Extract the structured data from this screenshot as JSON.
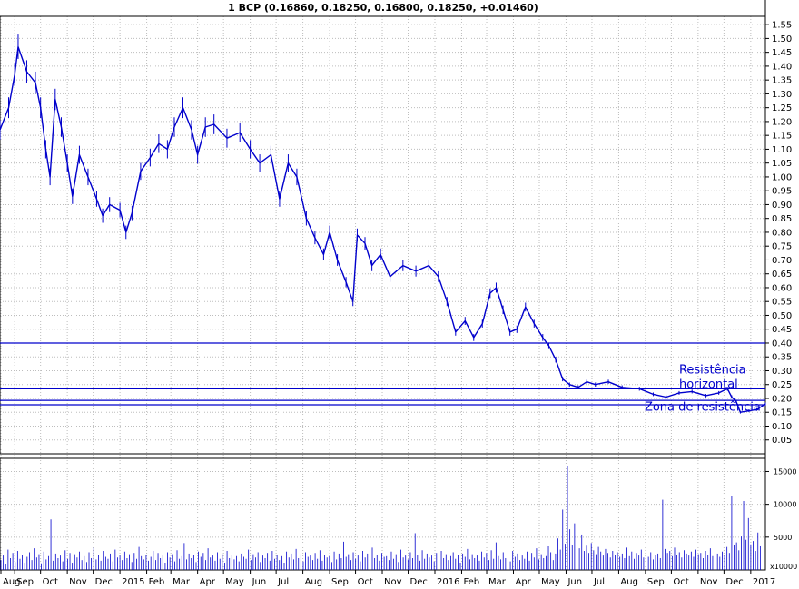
{
  "chart_data": {
    "type": "line",
    "title": "1 BCP (0.16860, 0.18250, 0.16800, 0.18250, +0.01460)",
    "colors": {
      "price": "#0000cc",
      "volume": "#0000cc",
      "resistance": "#0000cc",
      "grid": "#bdbdbd"
    },
    "grid": true,
    "price_axis": {
      "ylim": [
        0.0,
        1.58
      ],
      "ticks": [
        "1.55",
        "1.50",
        "1.45",
        "1.40",
        "1.35",
        "1.30",
        "1.25",
        "1.20",
        "1.15",
        "1.10",
        "1.05",
        "1.00",
        "0.95",
        "0.90",
        "0.85",
        "0.80",
        "0.75",
        "0.70",
        "0.65",
        "0.60",
        "0.55",
        "0.50",
        "0.45",
        "0.40",
        "0.35",
        "0.30",
        "0.25",
        "0.20",
        "0.15",
        "0.10",
        "0.05"
      ]
    },
    "volume_axis": {
      "ylim": [
        0,
        17000
      ],
      "ticks": [
        "15000",
        "10000",
        "5000"
      ],
      "unit_label": "x10000"
    },
    "x_axis": {
      "labels": [
        "Aug",
        "Sep",
        "Oct",
        "Nov",
        "Dec",
        "2015",
        "Feb",
        "Mar",
        "Apr",
        "May",
        "Jun",
        "Jul",
        "Aug",
        "Sep",
        "Oct",
        "Nov",
        "Dec",
        "2016",
        "Feb",
        "Mar",
        "Apr",
        "May",
        "Jun",
        "Jul",
        "Aug",
        "Sep",
        "Oct",
        "Nov",
        "Dec",
        "2017"
      ],
      "start": "2014-08-15",
      "end": "2017-01-18"
    },
    "series": [
      {
        "name": "BCP",
        "points": [
          [
            "2014-08-15",
            1.17
          ],
          [
            "2014-08-25",
            1.25
          ],
          [
            "2014-09-01",
            1.37
          ],
          [
            "2014-09-05",
            1.47
          ],
          [
            "2014-09-15",
            1.38
          ],
          [
            "2014-09-25",
            1.34
          ],
          [
            "2014-10-01",
            1.25
          ],
          [
            "2014-10-07",
            1.1
          ],
          [
            "2014-10-12",
            1.0
          ],
          [
            "2014-10-18",
            1.28
          ],
          [
            "2014-10-25",
            1.18
          ],
          [
            "2014-11-01",
            1.05
          ],
          [
            "2014-11-07",
            0.93
          ],
          [
            "2014-11-15",
            1.08
          ],
          [
            "2014-11-25",
            1.0
          ],
          [
            "2014-12-05",
            0.92
          ],
          [
            "2014-12-12",
            0.86
          ],
          [
            "2014-12-20",
            0.9
          ],
          [
            "2015-01-01",
            0.88
          ],
          [
            "2015-01-08",
            0.8
          ],
          [
            "2015-01-15",
            0.87
          ],
          [
            "2015-01-25",
            1.02
          ],
          [
            "2015-02-05",
            1.07
          ],
          [
            "2015-02-15",
            1.12
          ],
          [
            "2015-02-25",
            1.1
          ],
          [
            "2015-03-05",
            1.18
          ],
          [
            "2015-03-15",
            1.25
          ],
          [
            "2015-03-25",
            1.17
          ],
          [
            "2015-04-01",
            1.08
          ],
          [
            "2015-04-10",
            1.18
          ],
          [
            "2015-04-20",
            1.19
          ],
          [
            "2015-05-05",
            1.14
          ],
          [
            "2015-05-20",
            1.16
          ],
          [
            "2015-06-01",
            1.1
          ],
          [
            "2015-06-12",
            1.05
          ],
          [
            "2015-06-25",
            1.08
          ],
          [
            "2015-07-05",
            0.92
          ],
          [
            "2015-07-15",
            1.05
          ],
          [
            "2015-07-25",
            1.0
          ],
          [
            "2015-08-05",
            0.85
          ],
          [
            "2015-08-15",
            0.78
          ],
          [
            "2015-08-25",
            0.72
          ],
          [
            "2015-09-01",
            0.8
          ],
          [
            "2015-09-10",
            0.7
          ],
          [
            "2015-09-20",
            0.62
          ],
          [
            "2015-09-28",
            0.55
          ],
          [
            "2015-10-03",
            0.79
          ],
          [
            "2015-10-12",
            0.76
          ],
          [
            "2015-10-20",
            0.68
          ],
          [
            "2015-10-30",
            0.72
          ],
          [
            "2015-11-10",
            0.64
          ],
          [
            "2015-11-25",
            0.68
          ],
          [
            "2015-12-10",
            0.66
          ],
          [
            "2015-12-25",
            0.68
          ],
          [
            "2016-01-05",
            0.64
          ],
          [
            "2016-01-15",
            0.55
          ],
          [
            "2016-01-25",
            0.44
          ],
          [
            "2016-02-05",
            0.48
          ],
          [
            "2016-02-15",
            0.42
          ],
          [
            "2016-02-25",
            0.47
          ],
          [
            "2016-03-05",
            0.58
          ],
          [
            "2016-03-12",
            0.6
          ],
          [
            "2016-03-20",
            0.52
          ],
          [
            "2016-03-28",
            0.44
          ],
          [
            "2016-04-05",
            0.45
          ],
          [
            "2016-04-15",
            0.53
          ],
          [
            "2016-04-25",
            0.47
          ],
          [
            "2016-05-05",
            0.42
          ],
          [
            "2016-05-12",
            0.39
          ],
          [
            "2016-05-20",
            0.34
          ],
          [
            "2016-05-28",
            0.27
          ],
          [
            "2016-06-05",
            0.25
          ],
          [
            "2016-06-15",
            0.24
          ],
          [
            "2016-06-25",
            0.26
          ],
          [
            "2016-07-05",
            0.25
          ],
          [
            "2016-07-20",
            0.26
          ],
          [
            "2016-08-05",
            0.24
          ],
          [
            "2016-08-25",
            0.235
          ],
          [
            "2016-09-10",
            0.215
          ],
          [
            "2016-09-25",
            0.205
          ],
          [
            "2016-10-10",
            0.22
          ],
          [
            "2016-10-25",
            0.225
          ],
          [
            "2016-11-10",
            0.21
          ],
          [
            "2016-11-25",
            0.22
          ],
          [
            "2016-12-05",
            0.235
          ],
          [
            "2016-12-10",
            0.205
          ],
          [
            "2016-12-15",
            0.19
          ],
          [
            "2016-12-20",
            0.15
          ],
          [
            "2016-12-30",
            0.155
          ],
          [
            "2017-01-08",
            0.16
          ],
          [
            "2017-01-18",
            0.18
          ]
        ]
      }
    ],
    "volume_bars": [
      1500,
      2200,
      900,
      3100,
      1800,
      2600,
      1200,
      2900,
      1700,
      2300,
      1100,
      2000,
      2700,
      1500,
      3300,
      1900,
      2400,
      1000,
      2800,
      1600,
      2100,
      7700,
      1400,
      2500,
      1800,
      2200,
      1300,
      3000,
      1700,
      2600,
      1100,
      2400,
      1900,
      2800,
      1500,
      2100,
      1200,
      2700,
      1800,
      3400,
      1600,
      2300,
      1400,
      2900,
      2000,
      1700,
      2500,
      1300,
      3100,
      1900,
      2200,
      1500,
      2800,
      1800,
      2400,
      1200,
      2600,
      1700,
      3500,
      2100,
      1600,
      2300,
      1400,
      2000,
      2900,
      1500,
      2600,
      1800,
      2200,
      1100,
      2700,
      1900,
      2400,
      1300,
      3000,
      1700,
      2100,
      4100,
      1600,
      2500,
      1800,
      2300,
      1200,
      2800,
      2000,
      2600,
      1500,
      3300,
      1900,
      2200,
      1400,
      2700,
      1700,
      2400,
      1100,
      2900,
      1800,
      2300,
      1600,
      2100,
      1300,
      2500,
      2000,
      1700,
      3100,
      1500,
      2400,
      1900,
      2700,
      1200,
      2200,
      1800,
      2600,
      1400,
      2900,
      1700,
      2300,
      1500,
      2100,
      1100,
      2800,
      1900,
      2500,
      1600,
      3200,
      1800,
      2400,
      1300,
      2700,
      2000,
      2200,
      1500,
      2600,
      1700,
      3000,
      1400,
      2300,
      1900,
      2100,
      1200,
      2800,
      1600,
      2500,
      1800,
      4300,
      2000,
      2400,
      1500,
      2700,
      1700,
      2200,
      1300,
      2900,
      1900,
      2500,
      1600,
      3400,
      1800,
      2300,
      1400,
      2600,
      2000,
      2100,
      1500,
      2800,
      1700,
      2400,
      1200,
      3100,
      1900,
      2200,
      1600,
      2700,
      1800,
      5600,
      2300,
      1400,
      3000,
      1700,
      2500,
      1900,
      2200,
      1300,
      2600,
      1600,
      2900,
      1800,
      2400,
      1500,
      2100,
      2700,
      1700,
      2300,
      1100,
      2500,
      2000,
      3200,
      1600,
      2400,
      1800,
      2200,
      1400,
      2800,
      1900,
      2600,
      1500,
      3000,
      1700,
      4200,
      2100,
      1600,
      2700,
      1800,
      2300,
      1300,
      2900,
      2000,
      2500,
      1500,
      2200,
      1700,
      2800,
      1400,
      2600,
      1900,
      3300,
      1600,
      2400,
      1800,
      2100,
      3600,
      2700,
      1500,
      2500,
      4800,
      3100,
      9200,
      4000,
      15900,
      6200,
      3800,
      7100,
      4500,
      3300,
      5400,
      2900,
      3700,
      2600,
      4100,
      3000,
      2400,
      3500,
      2800,
      2200,
      3200,
      2600,
      1900,
      2900,
      2300,
      2700,
      2000,
      2500,
      1800,
      3400,
      2100,
      2800,
      1700,
      2600,
      2200,
      3100,
      1900,
      2400,
      2000,
      2700,
      1600,
      2300,
      2500,
      1800,
      10700,
      3200,
      2600,
      2900,
      2100,
      3400,
      2300,
      2700,
      1900,
      3000,
      2500,
      2200,
      2800,
      2000,
      3100,
      2400,
      2600,
      1800,
      2900,
      2300,
      3300,
      2100,
      2700,
      2500,
      2000,
      2800,
      2200,
      3500,
      2600,
      11300,
      3800,
      4200,
      3000,
      5100,
      10500,
      4600,
      7900,
      3900,
      4400,
      2900,
      5700,
      3600
    ],
    "annotations": [
      {
        "text_lines": [
          "Resistência",
          "horizontal"
        ],
        "price": 0.29,
        "date": "2016-10-10",
        "color": "#0000cc"
      },
      {
        "text_lines": [
          "Zona de resistência"
        ],
        "price": 0.155,
        "date": "2016-08-31",
        "color": "#0000cc"
      }
    ],
    "resistance_levels": [
      0.4,
      0.235,
      0.193,
      0.177
    ]
  }
}
